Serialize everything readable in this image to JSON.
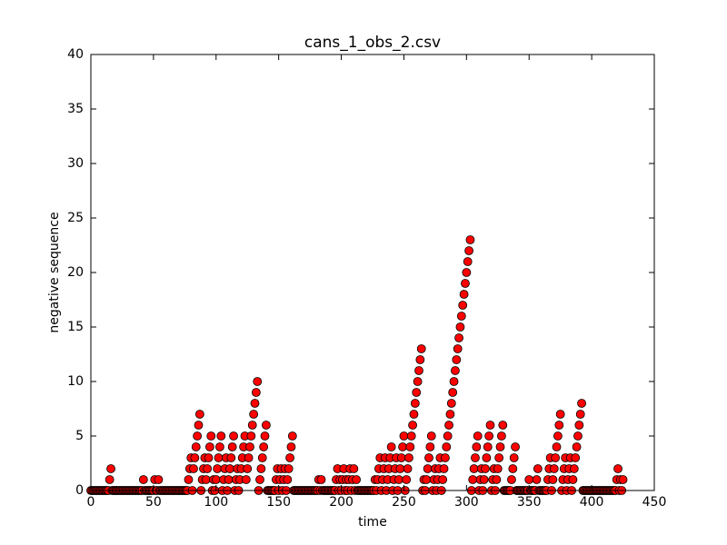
{
  "chart_data": {
    "type": "scatter",
    "title": "cans_1_obs_2.csv",
    "x_label": "time",
    "y_label": "negative sequence",
    "x": [
      0,
      1,
      2,
      3,
      4,
      5,
      6,
      7,
      8,
      9,
      10,
      11,
      12,
      13,
      14,
      15,
      16,
      17,
      18,
      19,
      20,
      21,
      22,
      23,
      24,
      25,
      26,
      27,
      28,
      29,
      30,
      31,
      32,
      33,
      34,
      35,
      36,
      37,
      38,
      39,
      40,
      41,
      42,
      43,
      44,
      45,
      46,
      47,
      48,
      49,
      50,
      51,
      52,
      53,
      54,
      55,
      56,
      57,
      58,
      59,
      60,
      61,
      62,
      63,
      64,
      65,
      66,
      67,
      68,
      69,
      70,
      71,
      72,
      73,
      74,
      75,
      76,
      77,
      78,
      79,
      80,
      81,
      82,
      83,
      84,
      85,
      86,
      87,
      88,
      89,
      90,
      91,
      92,
      93,
      94,
      95,
      96,
      97,
      98,
      99,
      100,
      101,
      102,
      103,
      104,
      105,
      106,
      107,
      108,
      109,
      110,
      111,
      112,
      113,
      114,
      115,
      116,
      117,
      118,
      119,
      120,
      121,
      122,
      123,
      124,
      125,
      126,
      127,
      128,
      129,
      130,
      131,
      132,
      133,
      134,
      135,
      136,
      137,
      138,
      139,
      140,
      141,
      142,
      143,
      144,
      145,
      146,
      147,
      148,
      149,
      150,
      151,
      152,
      153,
      154,
      155,
      156,
      157,
      158,
      159,
      160,
      161,
      162,
      163,
      164,
      165,
      166,
      167,
      168,
      169,
      170,
      171,
      172,
      173,
      174,
      175,
      176,
      177,
      178,
      179,
      180,
      181,
      182,
      183,
      184,
      185,
      186,
      187,
      188,
      189,
      190,
      191,
      192,
      193,
      194,
      195,
      196,
      197,
      198,
      199,
      200,
      201,
      202,
      203,
      204,
      205,
      206,
      207,
      208,
      209,
      210,
      211,
      212,
      213,
      214,
      215,
      216,
      217,
      218,
      219,
      220,
      221,
      222,
      223,
      224,
      225,
      226,
      227,
      228,
      229,
      230,
      231,
      232,
      233,
      234,
      235,
      236,
      237,
      238,
      239,
      240,
      241,
      242,
      243,
      244,
      245,
      246,
      247,
      248,
      249,
      250,
      251,
      252,
      253,
      254,
      255,
      256,
      257,
      258,
      259,
      260,
      261,
      262,
      263,
      264,
      265,
      266,
      267,
      268,
      269,
      270,
      271,
      272,
      273,
      274,
      275,
      276,
      277,
      278,
      279,
      280,
      281,
      282,
      283,
      284,
      285,
      286,
      287,
      288,
      289,
      290,
      291,
      292,
      293,
      294,
      295,
      296,
      297,
      298,
      299,
      300,
      301,
      302,
      303,
      304,
      305,
      306,
      307,
      308,
      309,
      310,
      311,
      312,
      313,
      314,
      315,
      316,
      317,
      318,
      319,
      320,
      321,
      322,
      323,
      324,
      325,
      326,
      327,
      328,
      329,
      330,
      331,
      332,
      333,
      334,
      335,
      336,
      337,
      338,
      339,
      340,
      341,
      342,
      343,
      344,
      345,
      346,
      347,
      348,
      349,
      350,
      351,
      352,
      353,
      354,
      355,
      356,
      357,
      358,
      359,
      360,
      361,
      362,
      363,
      364,
      365,
      366,
      367,
      368,
      369,
      370,
      371,
      372,
      373,
      374,
      375,
      376,
      377,
      378,
      379,
      380,
      381,
      382,
      383,
      384,
      385,
      386,
      387,
      388,
      389,
      390,
      391,
      392,
      393,
      394,
      395,
      396,
      397,
      398,
      399,
      400,
      401,
      402,
      403,
      404,
      405,
      406,
      407,
      408,
      409,
      410,
      411,
      412,
      413,
      414,
      415,
      416,
      417,
      418,
      419,
      420,
      421,
      422,
      423,
      424,
      425
    ],
    "series": [
      {
        "color": "#ff0000",
        "values": [
          0,
          0,
          0,
          0,
          0,
          0,
          0,
          0,
          0,
          0,
          0,
          0,
          0,
          0,
          0,
          1,
          2,
          0,
          0,
          0,
          0,
          0,
          0,
          0,
          0,
          0,
          0,
          0,
          0,
          0,
          0,
          0,
          0,
          0,
          0,
          0,
          0,
          0,
          0,
          0,
          0,
          0,
          1,
          0,
          0,
          0,
          0,
          0,
          0,
          0,
          0,
          1,
          0,
          0,
          1,
          0,
          0,
          0,
          0,
          0,
          0,
          0,
          0,
          0,
          0,
          0,
          0,
          0,
          0,
          0,
          0,
          0,
          0,
          0,
          0,
          0,
          0,
          0,
          1,
          2,
          3,
          0,
          2,
          3,
          4,
          5,
          6,
          7,
          0,
          1,
          2,
          3,
          1,
          2,
          3,
          4,
          5,
          0,
          1,
          0,
          1,
          2,
          3,
          4,
          5,
          0,
          1,
          2,
          3,
          0,
          1,
          2,
          3,
          4,
          5,
          0,
          1,
          2,
          0,
          1,
          2,
          3,
          4,
          5,
          1,
          2,
          3,
          4,
          5,
          6,
          7,
          8,
          9,
          10,
          0,
          1,
          2,
          3,
          4,
          5,
          6,
          0,
          0,
          0,
          0,
          0,
          0,
          0,
          1,
          2,
          0,
          1,
          2,
          0,
          1,
          2,
          0,
          1,
          2,
          3,
          4,
          5,
          0,
          0,
          0,
          0,
          0,
          0,
          0,
          0,
          0,
          0,
          0,
          0,
          0,
          0,
          0,
          0,
          0,
          0,
          0,
          0,
          1,
          0,
          1,
          0,
          0,
          0,
          0,
          0,
          0,
          0,
          0,
          0,
          0,
          0,
          1,
          2,
          0,
          1,
          0,
          1,
          2,
          0,
          1,
          0,
          1,
          2,
          0,
          1,
          2,
          0,
          1,
          0,
          0,
          0,
          0,
          0,
          0,
          0,
          0,
          0,
          0,
          0,
          0,
          0,
          0,
          1,
          0,
          1,
          2,
          3,
          0,
          1,
          2,
          3,
          0,
          1,
          2,
          3,
          4,
          0,
          1,
          2,
          3,
          0,
          1,
          2,
          3,
          4,
          5,
          0,
          1,
          2,
          3,
          4,
          5,
          6,
          7,
          8,
          9,
          10,
          11,
          12,
          13,
          0,
          1,
          0,
          1,
          2,
          3,
          4,
          5,
          0,
          1,
          2,
          0,
          1,
          2,
          3,
          0,
          1,
          2,
          3,
          4,
          5,
          6,
          7,
          8,
          9,
          10,
          11,
          12,
          13,
          14,
          15,
          16,
          17,
          18,
          19,
          20,
          21,
          22,
          23,
          0,
          1,
          2,
          3,
          4,
          5,
          0,
          1,
          2,
          0,
          1,
          2,
          3,
          4,
          5,
          6,
          0,
          1,
          2,
          0,
          1,
          2,
          3,
          4,
          5,
          6,
          0,
          0,
          0,
          0,
          0,
          0,
          1,
          2,
          3,
          4,
          0,
          0,
          0,
          0,
          0,
          0,
          0,
          0,
          0,
          0,
          1,
          0,
          0,
          0,
          0,
          0,
          1,
          2,
          0,
          0,
          0,
          0,
          0,
          0,
          0,
          1,
          2,
          3,
          0,
          1,
          2,
          3,
          4,
          5,
          6,
          7,
          0,
          1,
          2,
          3,
          0,
          1,
          2,
          3,
          0,
          1,
          2,
          3,
          4,
          5,
          6,
          7,
          8,
          0,
          0,
          0,
          0,
          0,
          0,
          0,
          0,
          0,
          0,
          0,
          0,
          0,
          0,
          0,
          0,
          0,
          0,
          0,
          0,
          0,
          0,
          0,
          0,
          0,
          0,
          0,
          1,
          2,
          0,
          1,
          0,
          1
        ]
      }
    ],
    "xlim": [
      0,
      450
    ],
    "xticks": [
      0,
      50,
      100,
      150,
      200,
      250,
      300,
      350,
      400,
      450
    ],
    "ylim": [
      0,
      40
    ],
    "yticks": [
      0,
      5,
      10,
      15,
      20,
      25,
      30,
      35,
      40
    ]
  }
}
